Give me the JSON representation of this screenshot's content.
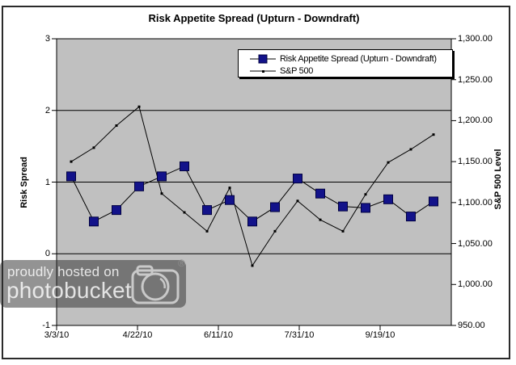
{
  "chart_data": {
    "type": "line",
    "title": "Risk Appetite Spread (Upturn - Downdraft)",
    "left_axis_title": "Risk Spread",
    "right_axis_title": "S&P 500 Level",
    "left_ylim": [
      -1,
      3
    ],
    "right_ylim": [
      950,
      1300
    ],
    "left_tick_labels": [
      "3",
      "2",
      "1",
      "0",
      "-1"
    ],
    "right_tick_labels": [
      "1,300.00",
      "1,250.00",
      "1,200.00",
      "1,150.00",
      "1,100.00",
      "1,050.00",
      "1,000.00",
      "950.00"
    ],
    "x_tick_labels": [
      "3/3/10",
      "4/22/10",
      "6/11/10",
      "7/31/10",
      "9/19/10"
    ],
    "gridlines_at_left_values": [
      2,
      1,
      0
    ],
    "legend_position": "top-center-inside",
    "plot_bg": "#C0C0C0",
    "x_dates": [
      "3/12/10",
      "3/26/10",
      "4/9/10",
      "4/23/10",
      "5/7/10",
      "5/21/10",
      "6/4/10",
      "6/18/10",
      "7/2/10",
      "7/16/10",
      "7/30/10",
      "8/13/10",
      "8/27/10",
      "9/10/10",
      "9/24/10",
      "10/8/10",
      "10/22/10"
    ],
    "series": [
      {
        "name": "Risk Appetite Spread (Upturn - Downdraft)",
        "axis": "left",
        "marker": "navy-square",
        "color": "#12128a",
        "line_color": "#000000",
        "values": [
          1.08,
          0.45,
          0.61,
          0.94,
          1.08,
          1.22,
          0.61,
          0.75,
          0.45,
          0.65,
          1.05,
          0.84,
          0.66,
          0.64,
          0.76,
          0.52,
          0.73
        ]
      },
      {
        "name": "S&P 500",
        "axis": "right",
        "marker": "small-dot",
        "color": "#000000",
        "line_color": "#000000",
        "values": [
          1150,
          1167,
          1194,
          1217,
          1111,
          1088,
          1065,
          1118,
          1023,
          1065,
          1102,
          1079,
          1065,
          1110,
          1149,
          1165,
          1183
        ]
      }
    ]
  },
  "watermark": {
    "line1": "proudly hosted on",
    "line2": "photobucket",
    "registered": "®",
    "icon": "camera-icon"
  }
}
